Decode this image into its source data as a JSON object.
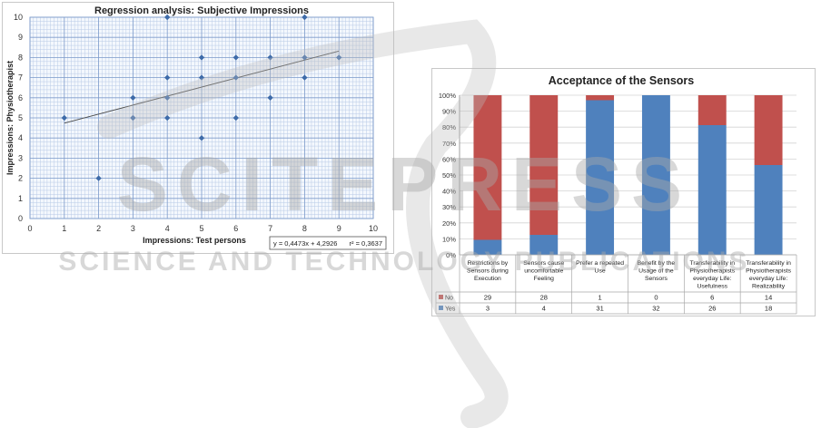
{
  "chart_data": [
    {
      "type": "scatter",
      "title": "Regression analysis: Subjective Impressions",
      "xlabel": "Impressions: Test persons",
      "ylabel": "Impressions: Physiotherapist",
      "xlim": [
        0,
        10
      ],
      "ylim": [
        0,
        10
      ],
      "x_ticks": [
        "0",
        "1",
        "2",
        "3",
        "4",
        "5",
        "6",
        "7",
        "8",
        "9",
        "10"
      ],
      "y_ticks": [
        "0",
        "1",
        "2",
        "3",
        "4",
        "5",
        "6",
        "7",
        "8",
        "9",
        "10"
      ],
      "points": [
        {
          "x": 1,
          "y": 5
        },
        {
          "x": 2,
          "y": 2
        },
        {
          "x": 3,
          "y": 6
        },
        {
          "x": 3,
          "y": 5
        },
        {
          "x": 4,
          "y": 10
        },
        {
          "x": 4,
          "y": 7
        },
        {
          "x": 4,
          "y": 6
        },
        {
          "x": 4,
          "y": 5
        },
        {
          "x": 5,
          "y": 8
        },
        {
          "x": 5,
          "y": 7
        },
        {
          "x": 5,
          "y": 4
        },
        {
          "x": 6,
          "y": 8
        },
        {
          "x": 6,
          "y": 7
        },
        {
          "x": 6,
          "y": 5
        },
        {
          "x": 7,
          "y": 8
        },
        {
          "x": 7,
          "y": 6
        },
        {
          "x": 8,
          "y": 10
        },
        {
          "x": 8,
          "y": 8
        },
        {
          "x": 8,
          "y": 7
        },
        {
          "x": 9,
          "y": 8
        }
      ],
      "trendline": {
        "slope": 0.4473,
        "intercept": 4.2926,
        "x_range": [
          1,
          9
        ]
      },
      "equation_label": "y = 0,4473x + 4,2926",
      "r2_label": "r² = 0,3637",
      "grid": true,
      "marker_color": "#3e6ba9"
    },
    {
      "type": "bar",
      "stacked": "percent",
      "title": "Acceptance of the Sensors",
      "categories": [
        "Restrictions by Sensors during Execution",
        "Sensors cause uncomfortable Feeling",
        "Prefer a repeated Use",
        "Benefit by the Usage of the Sensors",
        "Transferability in Physiotherapists everyday Life: Usefulness",
        "Transferability in Physiotherapists everyday Life: Realizability"
      ],
      "category_lines": [
        [
          "Restrictions by",
          "Sensors during",
          "Execution"
        ],
        [
          "Sensors cause",
          "uncomfortable",
          "Feeling"
        ],
        [
          "Prefer a repeated",
          "Use"
        ],
        [
          "Benefit by the",
          "Usage of the",
          "Sensors"
        ],
        [
          "Transferability in",
          "Physiotherapists",
          "everyday Life:",
          "Usefulness"
        ],
        [
          "Transferability in",
          "Physiotherapists",
          "everyday Life:",
          "Realizability"
        ]
      ],
      "series": [
        {
          "name": "No",
          "values": [
            29,
            28,
            1,
            0,
            6,
            14
          ],
          "color": "#c0504d"
        },
        {
          "name": "Yes",
          "values": [
            3,
            4,
            31,
            32,
            26,
            18
          ],
          "color": "#4f81bd"
        }
      ],
      "y_ticks": [
        "0%",
        "10%",
        "20%",
        "30%",
        "40%",
        "50%",
        "60%",
        "70%",
        "80%",
        "90%",
        "100%"
      ],
      "ylim": [
        0,
        100
      ],
      "data_table": true
    }
  ],
  "watermark": {
    "big_text": "SCITEPRESS",
    "small_text": "SCIENCE AND TECHNOLOGY PUBLICATIONS"
  }
}
